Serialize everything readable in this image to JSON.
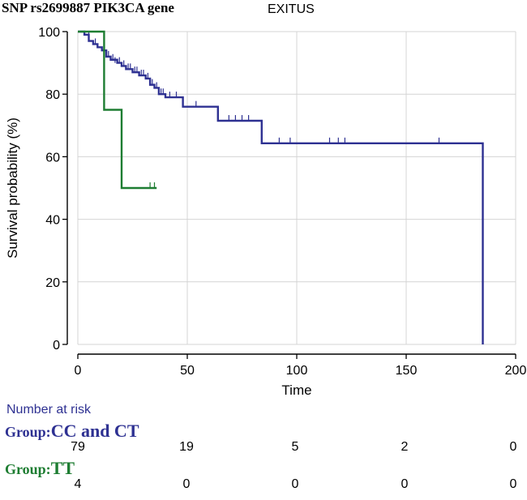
{
  "header": {
    "gene_title": "SNP rs2699887 PIK3CA gene",
    "event_title": "EXITUS"
  },
  "chart_data": {
    "type": "line",
    "subtype": "kaplan-meier",
    "xlabel": "Time",
    "ylabel": "Survival probability (%)",
    "xlim": [
      0,
      200
    ],
    "ylim": [
      0,
      100
    ],
    "x_ticks": [
      0,
      50,
      100,
      150,
      200
    ],
    "y_ticks": [
      0,
      20,
      40,
      60,
      80,
      100
    ],
    "x_tick_labels": [
      "0",
      "50",
      "100",
      "150",
      "200"
    ],
    "y_tick_labels": [
      "0",
      "20",
      "40",
      "60",
      "80",
      "100"
    ],
    "grid": true,
    "series": [
      {
        "name": "CC and CT",
        "color": "#2e3192",
        "steps": [
          [
            0,
            100
          ],
          [
            3,
            99
          ],
          [
            5,
            97
          ],
          [
            7,
            96
          ],
          [
            9,
            95
          ],
          [
            11,
            94
          ],
          [
            13,
            92
          ],
          [
            15,
            91
          ],
          [
            18,
            90
          ],
          [
            20,
            89
          ],
          [
            22,
            88
          ],
          [
            25,
            87
          ],
          [
            28,
            86
          ],
          [
            31,
            85
          ],
          [
            33,
            83
          ],
          [
            35,
            82
          ],
          [
            37,
            80
          ],
          [
            40,
            79
          ],
          [
            48,
            76
          ],
          [
            64,
            71.5
          ],
          [
            84,
            64.3
          ],
          [
            185,
            0
          ]
        ],
        "end_time": 185,
        "censored": [
          [
            5,
            98
          ],
          [
            8,
            96
          ],
          [
            12,
            94
          ],
          [
            14,
            92
          ],
          [
            16,
            91
          ],
          [
            17,
            90
          ],
          [
            19,
            90
          ],
          [
            21,
            89
          ],
          [
            23,
            88
          ],
          [
            24,
            88
          ],
          [
            26,
            87
          ],
          [
            27,
            87
          ],
          [
            29,
            86
          ],
          [
            30,
            86
          ],
          [
            32,
            85
          ],
          [
            34,
            83
          ],
          [
            36,
            82
          ],
          [
            38,
            80
          ],
          [
            39,
            80
          ],
          [
            42,
            79
          ],
          [
            45,
            79
          ],
          [
            54,
            76
          ],
          [
            69,
            71.5
          ],
          [
            72,
            71.5
          ],
          [
            75,
            71.5
          ],
          [
            78,
            71.5
          ],
          [
            92,
            64.3
          ],
          [
            97,
            64.3
          ],
          [
            115,
            64.3
          ],
          [
            119,
            64.3
          ],
          [
            122,
            64.3
          ],
          [
            165,
            64.3
          ]
        ]
      },
      {
        "name": "TT",
        "color": "#1e7d32",
        "steps": [
          [
            0,
            100
          ],
          [
            12,
            75
          ],
          [
            20,
            50
          ]
        ],
        "end_time": 36,
        "censored": [
          [
            33,
            50
          ],
          [
            35,
            50
          ]
        ]
      }
    ]
  },
  "risk_table": {
    "heading": "Number at risk",
    "group_prefix": "Group:",
    "groups": [
      {
        "name": "CC and CT",
        "color": "#2e3192",
        "counts": [
          "79",
          "19",
          "5",
          "2",
          "0"
        ]
      },
      {
        "name": "TT",
        "color": "#1e7d32",
        "counts": [
          "4",
          "0",
          "0",
          "0",
          "0"
        ]
      }
    ]
  }
}
